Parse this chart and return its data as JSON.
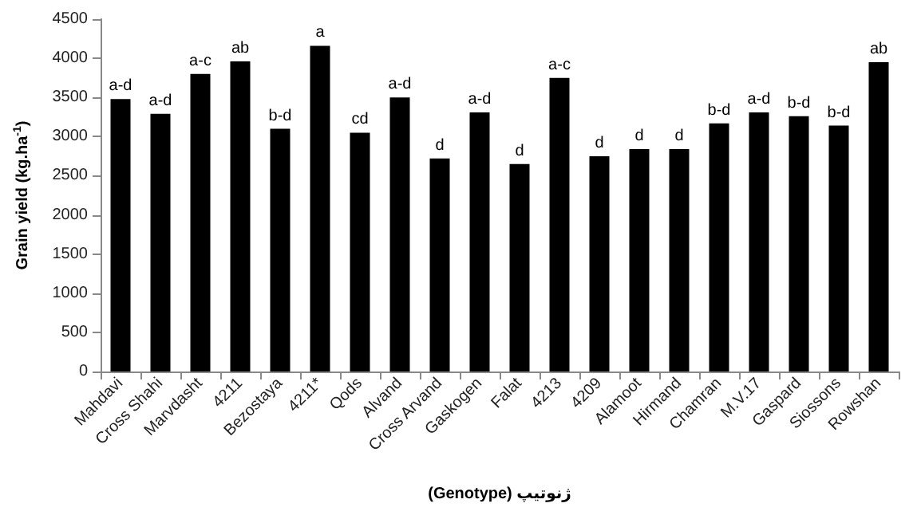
{
  "chart_data": {
    "type": "bar",
    "xlabel": "(Genotype) ژنوتیپ",
    "ylabel": "Grain yield (kg.ha$^{-1}$)",
    "categories": [
      "Mahdavi",
      "Cross Shahi",
      "Marvdasht",
      "4211",
      "Bezostaya",
      "4211*",
      "Qods",
      "Alvand",
      "Cross Arvand",
      "Gaskogen",
      "Falat",
      "4213",
      "4209",
      "Alamoot",
      "Hirmand",
      "Chamran",
      "M.V.17",
      "Gaspard",
      "Siossons",
      "Rowshan"
    ],
    "values": [
      3480,
      3290,
      3800,
      3960,
      3100,
      4160,
      3050,
      3500,
      2720,
      3310,
      2650,
      3750,
      2750,
      2840,
      2840,
      3170,
      3310,
      3260,
      3140,
      3950
    ],
    "color": "#000000",
    "ylim": [
      0,
      4500
    ],
    "yticks": [
      0,
      500,
      1000,
      1500,
      2000,
      2500,
      3000,
      3500,
      4000,
      4500
    ],
    "grid": false,
    "annotations": [
      {
        "text": "a-d",
        "x": "Mahdavi",
        "y": 3480
      },
      {
        "text": "a-d",
        "x": "Cross Shahi",
        "y": 3290
      },
      {
        "text": "a-c",
        "x": "Marvdasht",
        "y": 3800
      },
      {
        "text": "ab",
        "x": "4211",
        "y": 3960
      },
      {
        "text": "b-d",
        "x": "Bezostaya",
        "y": 3100
      },
      {
        "text": "a",
        "x": "4211*",
        "y": 4160
      },
      {
        "text": "cd",
        "x": "Qods",
        "y": 3050
      },
      {
        "text": "a-d",
        "x": "Alvand",
        "y": 3500
      },
      {
        "text": "d",
        "x": "Cross Arvand",
        "y": 2720
      },
      {
        "text": "a-d",
        "x": "Gaskogen",
        "y": 3310
      },
      {
        "text": "d",
        "x": "Falat",
        "y": 2650
      },
      {
        "text": "a-c",
        "x": "4213",
        "y": 3750
      },
      {
        "text": "d",
        "x": "4209",
        "y": 2750
      },
      {
        "text": "d",
        "x": "Alamoot",
        "y": 2840
      },
      {
        "text": "d",
        "x": "Hirmand",
        "y": 2840
      },
      {
        "text": "b-d",
        "x": "Chamran",
        "y": 3170
      },
      {
        "text": "a-d",
        "x": "M.V.17",
        "y": 3310
      },
      {
        "text": "b-d",
        "x": "Gaspard",
        "y": 3260
      },
      {
        "text": "b-d",
        "x": "Siossons",
        "y": 3140
      },
      {
        "text": "ab",
        "x": "Rowshan",
        "y": 3950
      }
    ]
  }
}
